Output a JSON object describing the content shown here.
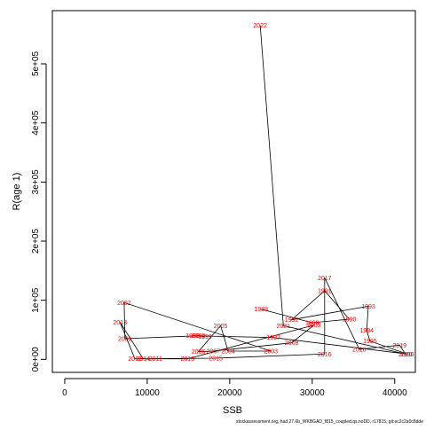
{
  "chart_data": {
    "type": "line",
    "title": "",
    "xlabel": "SSB",
    "ylabel": "R(age 1)",
    "xlim": [
      -1500,
      42500
    ],
    "ylim": [
      -22000,
      590000
    ],
    "x_ticks": [
      0,
      10000,
      20000,
      30000,
      40000
    ],
    "x_tick_labels": [
      "0",
      "10000",
      "20000",
      "30000",
      "40000"
    ],
    "y_ticks": [
      0,
      100000,
      200000,
      300000,
      400000,
      500000
    ],
    "y_tick_labels": [
      "0e+00",
      "1e+05",
      "2e+05",
      "3e+05",
      "4e+05",
      "5e+05"
    ],
    "grid": false,
    "line_color": "#000000",
    "label_color": "#ff0000",
    "points": [
      {
        "year": "1988",
        "x": 23800,
        "y": 85000
      },
      {
        "year": "1989",
        "x": 30000,
        "y": 62000
      },
      {
        "year": "1990",
        "x": 34500,
        "y": 68000
      },
      {
        "year": "1991",
        "x": 31500,
        "y": 116000
      },
      {
        "year": "1992",
        "x": 27500,
        "y": 67000
      },
      {
        "year": "1993",
        "x": 36800,
        "y": 90000
      },
      {
        "year": "1994",
        "x": 36600,
        "y": 49000
      },
      {
        "year": "1995",
        "x": 37000,
        "y": 31000
      },
      {
        "year": "1996",
        "x": 41500,
        "y": 9000
      },
      {
        "year": "1997",
        "x": 25300,
        "y": 37000
      },
      {
        "year": "1998",
        "x": 15500,
        "y": 40000
      },
      {
        "year": "1999",
        "x": 17000,
        "y": 39000
      },
      {
        "year": "2000",
        "x": 16200,
        "y": 40000
      },
      {
        "year": "2001",
        "x": 7300,
        "y": 35000
      },
      {
        "year": "2002",
        "x": 7200,
        "y": 96000
      },
      {
        "year": "2003",
        "x": 25000,
        "y": 14000
      },
      {
        "year": "2004",
        "x": 19800,
        "y": 14000
      },
      {
        "year": "2005",
        "x": 18900,
        "y": 57000
      },
      {
        "year": "2006",
        "x": 16200,
        "y": 13000
      },
      {
        "year": "2007",
        "x": 18000,
        "y": 14000
      },
      {
        "year": "2008",
        "x": 27500,
        "y": 28000
      },
      {
        "year": "2009",
        "x": 30200,
        "y": 58000
      },
      {
        "year": "2010",
        "x": 14900,
        "y": 1000
      },
      {
        "year": "2011",
        "x": 11000,
        "y": 1000
      },
      {
        "year": "2012",
        "x": 8500,
        "y": 1000
      },
      {
        "year": "2013",
        "x": 6700,
        "y": 63000
      },
      {
        "year": "2014",
        "x": 9500,
        "y": 1000
      },
      {
        "year": "2015",
        "x": 18300,
        "y": 2000
      },
      {
        "year": "2016",
        "x": 31500,
        "y": 9000
      },
      {
        "year": "2017",
        "x": 31500,
        "y": 138000
      },
      {
        "year": "2018",
        "x": 35700,
        "y": 17000
      },
      {
        "year": "2019",
        "x": 40600,
        "y": 24000
      },
      {
        "year": "2020",
        "x": 41300,
        "y": 9000
      },
      {
        "year": "2021",
        "x": 26500,
        "y": 57000
      },
      {
        "year": "2022",
        "x": 23700,
        "y": 565000
      }
    ]
  },
  "footer": {
    "caption": "stockassessment.org, had.27.6b_WKBGAD_f815_coupled.qs.noDD, r17815, git:ec2c2a0c8dde"
  }
}
